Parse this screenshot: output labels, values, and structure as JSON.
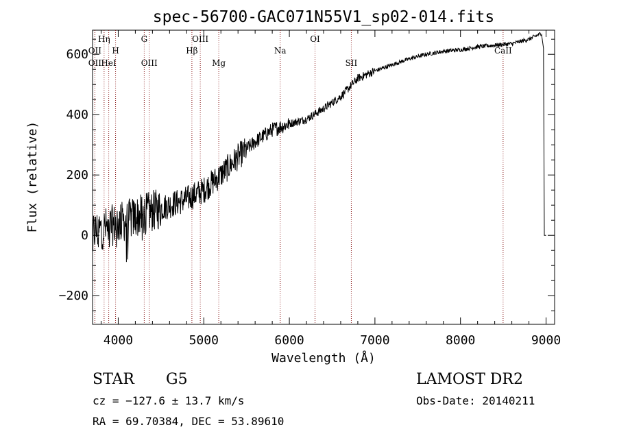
{
  "chart_data": {
    "type": "line",
    "title": "spec-56700-GAC071N55V1_sp02-014.fits",
    "xlabel": "Wavelength (Å)",
    "ylabel": "Flux (relative)",
    "xlim": [
      3700,
      9100
    ],
    "ylim": [
      -295,
      680
    ],
    "x_ticks": [
      {
        "v": 4000,
        "label": "4000"
      },
      {
        "v": 5000,
        "label": "5000"
      },
      {
        "v": 6000,
        "label": "6000"
      },
      {
        "v": 7000,
        "label": "7000"
      },
      {
        "v": 8000,
        "label": "8000"
      },
      {
        "v": 9000,
        "label": "9000"
      }
    ],
    "y_ticks": [
      {
        "v": -200,
        "label": "−200"
      },
      {
        "v": 0,
        "label": "0"
      },
      {
        "v": 200,
        "label": "200"
      },
      {
        "v": 400,
        "label": "400"
      },
      {
        "v": 600,
        "label": "600"
      }
    ],
    "line_color": "#000000",
    "marker_color": "#8b1a1a",
    "spectrum_control_points": [
      [
        3700,
        10
      ],
      [
        3800,
        20
      ],
      [
        3900,
        30
      ],
      [
        4000,
        40
      ],
      [
        4200,
        60
      ],
      [
        4400,
        80
      ],
      [
        4600,
        100
      ],
      [
        4800,
        120
      ],
      [
        5000,
        150
      ],
      [
        5200,
        200
      ],
      [
        5400,
        260
      ],
      [
        5600,
        310
      ],
      [
        5800,
        350
      ],
      [
        6000,
        370
      ],
      [
        6200,
        385
      ],
      [
        6400,
        420
      ],
      [
        6600,
        460
      ],
      [
        6800,
        520
      ],
      [
        7000,
        545
      ],
      [
        7200,
        565
      ],
      [
        7400,
        585
      ],
      [
        7600,
        600
      ],
      [
        7800,
        610
      ],
      [
        8000,
        615
      ],
      [
        8200,
        625
      ],
      [
        8400,
        630
      ],
      [
        8600,
        635
      ],
      [
        8800,
        650
      ],
      [
        8950,
        670
      ]
    ],
    "spectral_lines": [
      {
        "label": "Hη",
        "wave": 3835,
        "row": 0
      },
      {
        "label": "OII",
        "wave": 3727,
        "row": 1
      },
      {
        "label": "H",
        "wave": 3969,
        "row": 1
      },
      {
        "label": "OII",
        "wave": 3727,
        "row": 2
      },
      {
        "label": "HeI",
        "wave": 3889,
        "row": 2
      },
      {
        "label": "G",
        "wave": 4304,
        "row": 0
      },
      {
        "label": "OIII",
        "wave": 4363,
        "row": 2
      },
      {
        "label": "OIII",
        "wave": 4959,
        "row": 0
      },
      {
        "label": "Hβ",
        "wave": 4861,
        "row": 1
      },
      {
        "label": "Mg",
        "wave": 5175,
        "row": 2
      },
      {
        "label": "Na",
        "wave": 5893,
        "row": 1
      },
      {
        "label": "OI",
        "wave": 6300,
        "row": 0
      },
      {
        "label": "SII",
        "wave": 6724,
        "row": 2
      },
      {
        "label": "CaII",
        "wave": 8498,
        "row": 1
      }
    ],
    "marker_waves": [
      3727,
      3835,
      3889,
      3969,
      4304,
      4363,
      4861,
      4959,
      5175,
      5893,
      6300,
      6724,
      8498
    ]
  },
  "info": {
    "object_class": "STAR",
    "subclass": "G5",
    "survey": "LAMOST DR2",
    "cz_line": "cz = −127.6 ± 13.7 km/s",
    "obs_date_line": "Obs-Date: 20140211",
    "radec_line": "RA =  69.70384, DEC =  53.89610"
  }
}
